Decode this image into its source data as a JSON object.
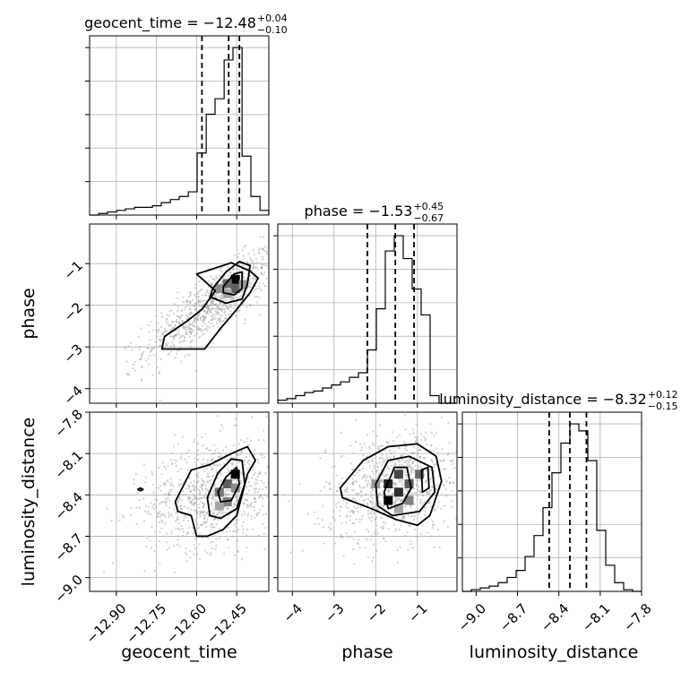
{
  "chart_data": {
    "type": "corner",
    "parameters": [
      {
        "name": "geocent_time",
        "label": "geocent_time",
        "title": "geocent_time = −12.48",
        "err_plus": "+0.04",
        "err_minus": "−0.10",
        "range": [
          -13.0,
          -12.33
        ],
        "ticks": [
          -12.9,
          -12.75,
          -12.6,
          -12.45
        ],
        "tick_labels": [
          "−12.90",
          "−12.75",
          "−12.60",
          "−12.45"
        ],
        "quantiles": [
          -12.58,
          -12.48,
          -12.44
        ],
        "hist": {
          "bin_edges": [
            -13.0,
            -12.966,
            -12.933,
            -12.899,
            -12.866,
            -12.832,
            -12.799,
            -12.765,
            -12.732,
            -12.698,
            -12.665,
            -12.631,
            -12.598,
            -12.564,
            -12.531,
            -12.497,
            -12.464,
            -12.43,
            -12.397,
            -12.363,
            -12.33
          ],
          "counts": [
            0,
            1,
            2,
            3,
            4,
            5,
            5,
            6,
            8,
            10,
            12,
            15,
            40,
            65,
            75,
            100,
            108,
            38,
            12,
            3
          ]
        }
      },
      {
        "name": "phase",
        "label": "phase",
        "title": "phase = −1.53",
        "err_plus": "+0.45",
        "err_minus": "−0.67",
        "range": [
          -4.35,
          -0.05
        ],
        "ticks": [
          -4,
          -3,
          -2,
          -1
        ],
        "tick_labels": [
          "−4",
          "−3",
          "−2",
          "−1"
        ],
        "quantiles": [
          -2.2,
          -1.53,
          -1.08
        ],
        "hist": {
          "bin_edges": [
            -4.35,
            -4.135,
            -3.92,
            -3.705,
            -3.49,
            -3.275,
            -3.06,
            -2.845,
            -2.63,
            -2.415,
            -2.2,
            -1.985,
            -1.77,
            -1.555,
            -1.34,
            -1.125,
            -0.91,
            -0.695,
            -0.48,
            -0.265,
            -0.05
          ],
          "counts": [
            2,
            3,
            5,
            7,
            8,
            10,
            12,
            14,
            17,
            20,
            35,
            62,
            100,
            110,
            95,
            75,
            58,
            5,
            0,
            0
          ]
        }
      },
      {
        "name": "luminosity_distance",
        "label": "luminosity_distance",
        "title": "luminosity_distance = −8.32",
        "err_plus": "+0.12",
        "err_minus": "−0.15",
        "range": [
          -9.1,
          -7.8
        ],
        "ticks": [
          -9.0,
          -8.7,
          -8.4,
          -8.1,
          -7.8
        ],
        "tick_labels": [
          "−9.0",
          "−8.7",
          "−8.4",
          "−8.1",
          "−7.8"
        ],
        "quantiles": [
          -8.47,
          -8.32,
          -8.2
        ],
        "hist": {
          "bin_edges": [
            -9.1,
            -9.035,
            -8.97,
            -8.905,
            -8.84,
            -8.775,
            -8.71,
            -8.645,
            -8.58,
            -8.515,
            -8.45,
            -8.385,
            -8.32,
            -8.255,
            -8.19,
            -8.125,
            -8.06,
            -7.995,
            -7.93,
            -7.865,
            -7.8
          ],
          "counts": [
            0,
            1,
            2,
            3,
            5,
            8,
            12,
            20,
            32,
            48,
            68,
            85,
            96,
            92,
            75,
            35,
            15,
            5,
            1,
            0
          ]
        }
      }
    ],
    "pairs": [
      {
        "x": "geocent_time",
        "y": "phase",
        "y_range": [
          -4.35,
          -0.05
        ],
        "y_ticks": [
          -4,
          -3,
          -2,
          -1
        ],
        "y_tick_labels": [
          "−4",
          "−3",
          "−2",
          "−1"
        ],
        "density_cells": [
          {
            "x": -12.455,
            "y": -1.38,
            "w": 1.0
          },
          {
            "x": -12.485,
            "y": -1.48,
            "w": 0.55
          },
          {
            "x": -12.455,
            "y": -1.6,
            "w": 0.6
          },
          {
            "x": -12.515,
            "y": -1.6,
            "w": 0.4
          },
          {
            "x": -12.485,
            "y": -1.72,
            "w": 0.3
          },
          {
            "x": -12.425,
            "y": -1.5,
            "w": 0.35
          }
        ],
        "contours": [
          [
            [
              -12.57,
              -3.05
            ],
            [
              -12.51,
              -2.55
            ],
            [
              -12.45,
              -2.1
            ],
            [
              -12.4,
              -1.7
            ],
            [
              -12.37,
              -1.35
            ],
            [
              -12.4,
              -1.18
            ],
            [
              -12.47,
              -0.98
            ],
            [
              -12.55,
              -1.15
            ],
            [
              -12.6,
              -1.25
            ],
            [
              -12.53,
              -1.65
            ],
            [
              -12.58,
              -2.1
            ],
            [
              -12.64,
              -2.4
            ],
            [
              -12.72,
              -2.75
            ],
            [
              -12.73,
              -3.05
            ]
          ],
          [
            [
              -12.54,
              -1.6
            ],
            [
              -12.49,
              -1.2
            ],
            [
              -12.44,
              -0.95
            ],
            [
              -12.4,
              -1.05
            ],
            [
              -12.41,
              -1.5
            ],
            [
              -12.43,
              -1.85
            ],
            [
              -12.49,
              -1.95
            ],
            [
              -12.55,
              -1.8
            ]
          ],
          [
            [
              -12.5,
              -1.55
            ],
            [
              -12.46,
              -1.25
            ],
            [
              -12.43,
              -1.2
            ],
            [
              -12.43,
              -1.6
            ],
            [
              -12.46,
              -1.75
            ],
            [
              -12.5,
              -1.7
            ]
          ]
        ]
      },
      {
        "x": "geocent_time",
        "y": "luminosity_distance",
        "y_range": [
          -9.1,
          -7.8
        ],
        "y_ticks": [
          -9.0,
          -8.7,
          -8.4,
          -8.1,
          -7.8
        ],
        "y_tick_labels": [
          "−9.0",
          "−8.7",
          "−8.4",
          "−8.1",
          "−7.8"
        ],
        "density_cells": [
          {
            "x": -12.455,
            "y": -8.25,
            "w": 1.0
          },
          {
            "x": -12.485,
            "y": -8.32,
            "w": 0.6
          },
          {
            "x": -12.515,
            "y": -8.38,
            "w": 0.5
          },
          {
            "x": -12.485,
            "y": -8.45,
            "w": 0.45
          },
          {
            "x": -12.455,
            "y": -8.35,
            "w": 0.4
          },
          {
            "x": -12.515,
            "y": -8.48,
            "w": 0.3
          }
        ],
        "contours": [
          [
            [
              -12.68,
              -8.45
            ],
            [
              -12.62,
              -8.22
            ],
            [
              -12.55,
              -8.18
            ],
            [
              -12.47,
              -8.1
            ],
            [
              -12.41,
              -8.05
            ],
            [
              -12.38,
              -8.15
            ],
            [
              -12.41,
              -8.25
            ],
            [
              -12.45,
              -8.55
            ],
            [
              -12.5,
              -8.65
            ],
            [
              -12.56,
              -8.7
            ],
            [
              -12.6,
              -8.7
            ],
            [
              -12.62,
              -8.55
            ],
            [
              -12.67,
              -8.52
            ]
          ],
          [
            [
              -12.56,
              -8.42
            ],
            [
              -12.52,
              -8.24
            ],
            [
              -12.47,
              -8.14
            ],
            [
              -12.43,
              -8.15
            ],
            [
              -12.42,
              -8.32
            ],
            [
              -12.45,
              -8.5
            ],
            [
              -12.51,
              -8.57
            ],
            [
              -12.55,
              -8.55
            ]
          ],
          [
            [
              -12.52,
              -8.38
            ],
            [
              -12.49,
              -8.27
            ],
            [
              -12.45,
              -8.2
            ],
            [
              -12.44,
              -8.32
            ],
            [
              -12.47,
              -8.44
            ],
            [
              -12.51,
              -8.45
            ]
          ]
        ],
        "outlier_contours": [
          [
            [
              -12.82,
              -8.36
            ],
            [
              -12.81,
              -8.35
            ],
            [
              -12.8,
              -8.36
            ],
            [
              -12.81,
              -8.37
            ]
          ]
        ]
      },
      {
        "x": "phase",
        "y": "luminosity_distance",
        "y_range": [
          -9.1,
          -7.8
        ],
        "y_ticks": [
          -9.0,
          -8.7,
          -8.4,
          -8.1,
          -7.8
        ],
        "y_tick_labels": [
          "−9.0",
          "−8.7",
          "−8.4",
          "−8.1",
          "−7.8"
        ],
        "density_cells": [
          {
            "x": -1.45,
            "y": -8.25,
            "w": 0.7
          },
          {
            "x": -1.7,
            "y": -8.32,
            "w": 0.85
          },
          {
            "x": -1.2,
            "y": -8.32,
            "w": 0.6
          },
          {
            "x": -1.7,
            "y": -8.44,
            "w": 1.0
          },
          {
            "x": -1.45,
            "y": -8.38,
            "w": 0.8
          },
          {
            "x": -2.0,
            "y": -8.32,
            "w": 0.35
          },
          {
            "x": -0.95,
            "y": -8.25,
            "w": 0.55
          },
          {
            "x": -1.2,
            "y": -8.44,
            "w": 0.45
          },
          {
            "x": -1.45,
            "y": -8.5,
            "w": 0.3
          }
        ],
        "contours": [
          [
            [
              -2.85,
              -8.35
            ],
            [
              -2.3,
              -8.15
            ],
            [
              -1.7,
              -8.05
            ],
            [
              -1.0,
              -8.03
            ],
            [
              -0.55,
              -8.12
            ],
            [
              -0.42,
              -8.3
            ],
            [
              -0.7,
              -8.55
            ],
            [
              -1.0,
              -8.62
            ],
            [
              -1.5,
              -8.58
            ],
            [
              -2.1,
              -8.5
            ],
            [
              -2.8,
              -8.42
            ]
          ],
          [
            [
              -2.0,
              -8.32
            ],
            [
              -1.7,
              -8.15
            ],
            [
              -1.2,
              -8.12
            ],
            [
              -0.65,
              -8.2
            ],
            [
              -0.58,
              -8.38
            ],
            [
              -0.95,
              -8.52
            ],
            [
              -1.6,
              -8.55
            ],
            [
              -1.95,
              -8.48
            ]
          ],
          [
            [
              -1.8,
              -8.38
            ],
            [
              -1.55,
              -8.2
            ],
            [
              -1.25,
              -8.2
            ],
            [
              -1.15,
              -8.35
            ],
            [
              -1.35,
              -8.46
            ],
            [
              -1.7,
              -8.5
            ]
          ],
          [
            [
              -0.9,
              -8.22
            ],
            [
              -0.75,
              -8.2
            ],
            [
              -0.72,
              -8.35
            ],
            [
              -0.88,
              -8.38
            ]
          ]
        ]
      }
    ]
  }
}
